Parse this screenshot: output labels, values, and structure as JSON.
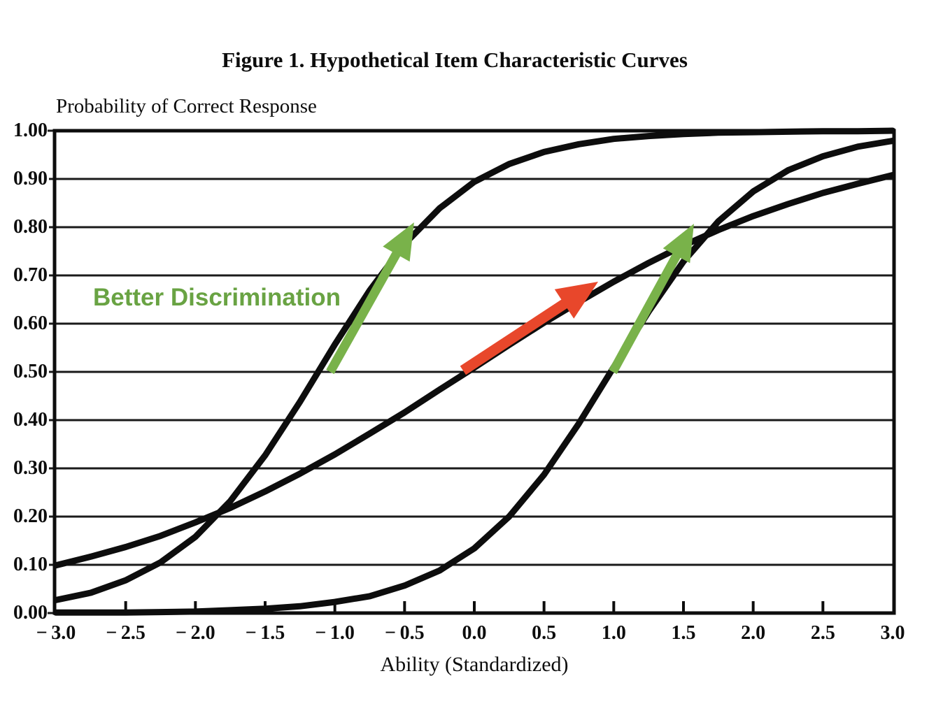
{
  "figure": {
    "title": "Figure 1. Hypothetical Item Characteristic Curves",
    "y_axis_caption": "Probability of Correct Response",
    "x_axis_caption": "Ability (Standardized)"
  },
  "colors": {
    "curve": "#0d0d0d",
    "grid": "#1a1a1a",
    "frame": "#0d0d0d",
    "arrow_green": "#79b24a",
    "arrow_red": "#e8472b",
    "label_green": "#69a343"
  },
  "chart_data": {
    "type": "line",
    "title": "Figure 1. Hypothetical Item Characteristic Curves",
    "xlabel": "Ability (Standardized)",
    "ylabel": "Probability of Correct Response",
    "xlim": [
      -3,
      3
    ],
    "ylim": [
      0,
      1
    ],
    "grid": "horizontal gridlines every 0.10",
    "legend": "none",
    "x_ticks": [
      {
        "value": -3.0,
        "label": "− 3.0"
      },
      {
        "value": -2.5,
        "label": "− 2.5"
      },
      {
        "value": -2.0,
        "label": "− 2.0"
      },
      {
        "value": -1.5,
        "label": "− 1.5"
      },
      {
        "value": -1.0,
        "label": "− 1.0"
      },
      {
        "value": -0.5,
        "label": "− 0.5"
      },
      {
        "value": 0.0,
        "label": "0.0"
      },
      {
        "value": 0.5,
        "label": "0.5"
      },
      {
        "value": 1.0,
        "label": "1.0"
      },
      {
        "value": 1.5,
        "label": "1.5"
      },
      {
        "value": 2.0,
        "label": "2.0"
      },
      {
        "value": 2.5,
        "label": "2.5"
      },
      {
        "value": 3.0,
        "label": "3.0"
      }
    ],
    "y_ticks": [
      {
        "value": 1.0,
        "label": "1.00"
      },
      {
        "value": 0.9,
        "label": "0.90"
      },
      {
        "value": 0.8,
        "label": "0.80"
      },
      {
        "value": 0.7,
        "label": "0.70"
      },
      {
        "value": 0.6,
        "label": "0.60"
      },
      {
        "value": 0.5,
        "label": "0.50"
      },
      {
        "value": 0.4,
        "label": "0.40"
      },
      {
        "value": 0.3,
        "label": "0.30"
      },
      {
        "value": 0.2,
        "label": "0.20"
      },
      {
        "value": 0.1,
        "label": "0.10"
      },
      {
        "value": 0.0,
        "label": "0.00"
      }
    ],
    "series": [
      {
        "name": "icc-steep-low-difficulty",
        "description": "high-discrimination item, difficulty ≈ −1.1",
        "points": [
          [
            -3,
            0.027
          ],
          [
            -2.75,
            0.042
          ],
          [
            -2.5,
            0.068
          ],
          [
            -2.25,
            0.105
          ],
          [
            -2,
            0.158
          ],
          [
            -1.75,
            0.232
          ],
          [
            -1.5,
            0.327
          ],
          [
            -1.25,
            0.438
          ],
          [
            -1,
            0.557
          ],
          [
            -0.75,
            0.669
          ],
          [
            -0.5,
            0.765
          ],
          [
            -0.25,
            0.839
          ],
          [
            0,
            0.894
          ],
          [
            0.25,
            0.931
          ],
          [
            0.5,
            0.956
          ],
          [
            0.75,
            0.972
          ],
          [
            1,
            0.983
          ],
          [
            1.25,
            0.989
          ],
          [
            1.5,
            0.993
          ],
          [
            1.75,
            0.996
          ],
          [
            2,
            0.997
          ],
          [
            2.25,
            0.998
          ],
          [
            2.5,
            0.999
          ],
          [
            2.75,
            0.999
          ],
          [
            3,
            1.0
          ]
        ]
      },
      {
        "name": "icc-shallow",
        "description": "low-discrimination item, difficulty ≈ 0",
        "points": [
          [
            -3,
            0.099
          ],
          [
            -2.75,
            0.117
          ],
          [
            -2.5,
            0.137
          ],
          [
            -2.25,
            0.16
          ],
          [
            -2,
            0.188
          ],
          [
            -1.75,
            0.218
          ],
          [
            -1.5,
            0.252
          ],
          [
            -1.25,
            0.289
          ],
          [
            -1,
            0.329
          ],
          [
            -0.75,
            0.372
          ],
          [
            -0.5,
            0.416
          ],
          [
            -0.25,
            0.463
          ],
          [
            0,
            0.509
          ],
          [
            0.25,
            0.556
          ],
          [
            0.5,
            0.602
          ],
          [
            0.75,
            0.645
          ],
          [
            1,
            0.687
          ],
          [
            1.25,
            0.726
          ],
          [
            1.5,
            0.762
          ],
          [
            1.75,
            0.794
          ],
          [
            2,
            0.823
          ],
          [
            2.25,
            0.848
          ],
          [
            2.5,
            0.871
          ],
          [
            2.75,
            0.89
          ],
          [
            3,
            0.908
          ]
        ]
      },
      {
        "name": "icc-steep-high-difficulty",
        "description": "high-discrimination item, difficulty ≈ +1",
        "points": [
          [
            -3,
            0.001
          ],
          [
            -2.75,
            0.001
          ],
          [
            -2.5,
            0.001
          ],
          [
            -2.25,
            0.002
          ],
          [
            -2,
            0.003
          ],
          [
            -1.75,
            0.006
          ],
          [
            -1.5,
            0.009
          ],
          [
            -1.25,
            0.014
          ],
          [
            -1,
            0.023
          ],
          [
            -0.75,
            0.035
          ],
          [
            -0.5,
            0.057
          ],
          [
            -0.25,
            0.088
          ],
          [
            0,
            0.134
          ],
          [
            0.25,
            0.2
          ],
          [
            0.5,
            0.287
          ],
          [
            0.75,
            0.393
          ],
          [
            1,
            0.51
          ],
          [
            1.25,
            0.625
          ],
          [
            1.5,
            0.729
          ],
          [
            1.75,
            0.812
          ],
          [
            2,
            0.874
          ],
          [
            2.25,
            0.918
          ],
          [
            2.5,
            0.947
          ],
          [
            2.75,
            0.967
          ],
          [
            3,
            0.979
          ]
        ]
      }
    ],
    "annotations": {
      "label": {
        "text": "Better Discrimination",
        "color": "#69a343",
        "x": -2.73,
        "y": 0.65
      },
      "arrows": [
        {
          "name": "green-arrow-left",
          "color": "#79b24a",
          "from": [
            -1.034,
            0.5
          ],
          "to": [
            -0.432,
            0.81
          ],
          "shaft_width": 13,
          "head_length": 52,
          "head_width": 44
        },
        {
          "name": "red-arrow",
          "color": "#e8472b",
          "from": [
            -0.081,
            0.503
          ],
          "to": [
            0.888,
            0.687
          ],
          "shaft_width": 15,
          "head_length": 58,
          "head_width": 50
        },
        {
          "name": "green-arrow-right",
          "color": "#79b24a",
          "from": [
            0.993,
            0.5
          ],
          "to": [
            1.575,
            0.807
          ],
          "shaft_width": 13,
          "head_length": 52,
          "head_width": 44
        }
      ]
    }
  }
}
